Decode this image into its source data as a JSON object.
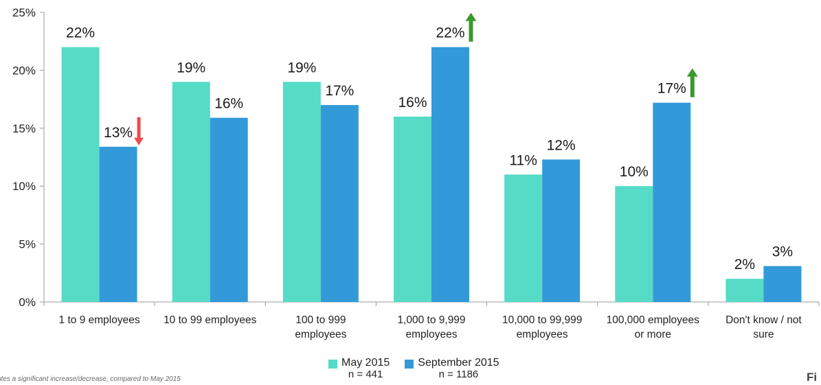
{
  "chart_data": {
    "type": "bar",
    "categories": [
      [
        "1 to 9 employees"
      ],
      [
        "10 to 99 employees"
      ],
      [
        "100 to 999",
        "employees"
      ],
      [
        "1,000 to 9,999",
        "employees"
      ],
      [
        "10,000 to 99,999",
        "employees"
      ],
      [
        "100,000 employees",
        "or more"
      ],
      [
        "Don't know / not",
        "sure"
      ]
    ],
    "series": [
      {
        "name": "May 2015",
        "n": "n = 441",
        "values": [
          22,
          19,
          19,
          16,
          11,
          10,
          2
        ],
        "labels": [
          "22%",
          "19%",
          "19%",
          "16%",
          "11%",
          "10%",
          "2%"
        ]
      },
      {
        "name": "September 2015",
        "n": "n = 1186",
        "values": [
          13.4,
          15.9,
          17,
          22,
          12.3,
          17.2,
          3.1
        ],
        "labels": [
          "13%",
          "16%",
          "17%",
          "22%",
          "12%",
          "17%",
          "3%"
        ]
      }
    ],
    "significance": [
      {
        "category_index": 0,
        "series_index": 1,
        "direction": "down"
      },
      {
        "category_index": 3,
        "series_index": 1,
        "direction": "up"
      },
      {
        "category_index": 5,
        "series_index": 1,
        "direction": "up"
      }
    ],
    "ylim": [
      0,
      25
    ],
    "yticks": [
      0,
      5,
      10,
      15,
      20,
      25
    ],
    "ytick_labels": [
      "0%",
      "5%",
      "10%",
      "15%",
      "20%",
      "25%"
    ],
    "title": "",
    "xlabel": "",
    "ylabel": "",
    "grid": false,
    "legend_position": "bottom-center",
    "colors": {
      "May 2015": "#56dbc6",
      "September 2015": "#329ad9",
      "arrow_up": "#3a9a2a",
      "arrow_down": "#ee4b4b"
    }
  },
  "footnote": "ates a significant increase/decrease, compared to May 2015",
  "figure_label": "Fi"
}
